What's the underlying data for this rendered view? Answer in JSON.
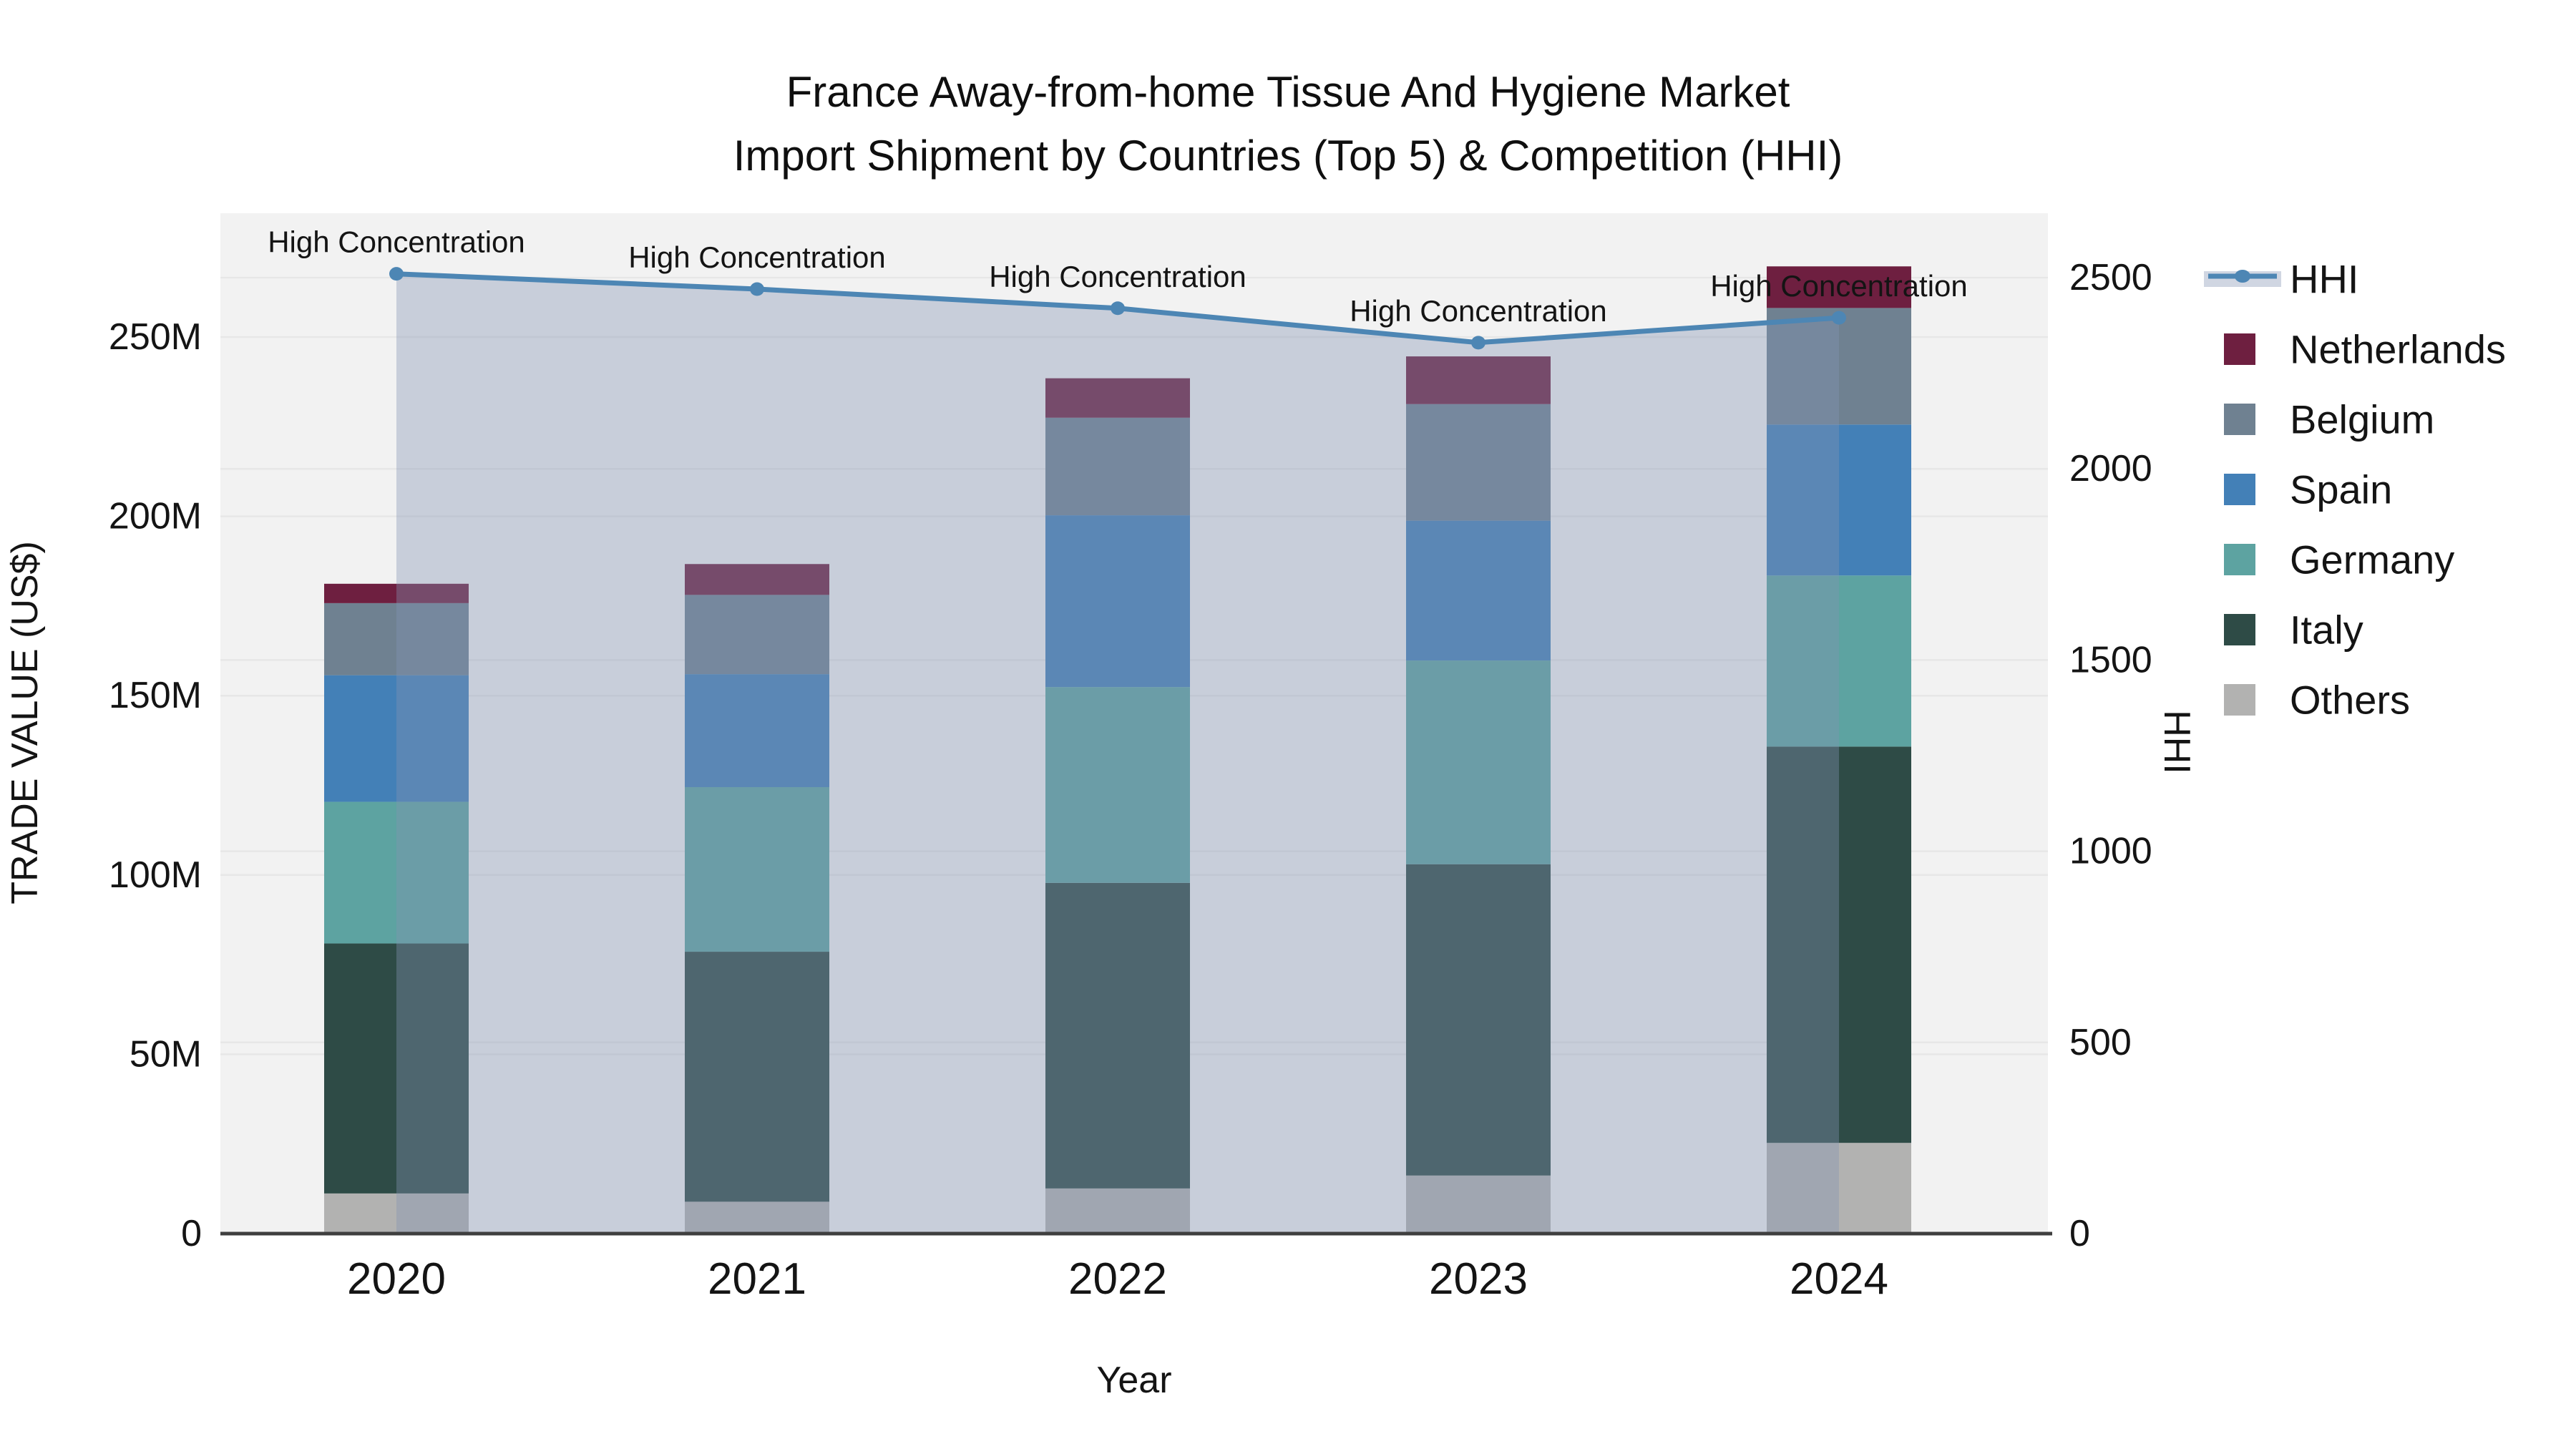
{
  "title": {
    "line1": "France Away-from-home Tissue And Hygiene Market",
    "line2": "Import Shipment by Countries (Top 5) & Competition (HHI)"
  },
  "axes": {
    "left": {
      "label": "TRADE VALUE (US$)",
      "tick_labels": [
        "0",
        "50M",
        "100M",
        "150M",
        "200M",
        "250M"
      ],
      "tick_values": [
        0,
        50,
        100,
        150,
        200,
        250
      ],
      "max_value": 250,
      "unit": "M US$"
    },
    "right": {
      "label": "HHI",
      "tick_labels": [
        "0",
        "500",
        "1000",
        "1500",
        "2000",
        "2500"
      ],
      "tick_values": [
        0,
        500,
        1000,
        1500,
        2000,
        2500
      ],
      "max_value": 2500
    },
    "x": {
      "label": "Year",
      "categories": [
        "2020",
        "2021",
        "2022",
        "2023",
        "2024"
      ]
    }
  },
  "legend": {
    "items": [
      {
        "label": "HHI",
        "type": "line",
        "color": "#4d86b4"
      },
      {
        "label": "Netherlands",
        "type": "patch",
        "color": "#6e1f40"
      },
      {
        "label": "Belgium",
        "type": "patch",
        "color": "#6f8191"
      },
      {
        "label": "Spain",
        "type": "patch",
        "color": "#4380b7"
      },
      {
        "label": "Germany",
        "type": "patch",
        "color": "#5da3a1"
      },
      {
        "label": "Italy",
        "type": "patch",
        "color": "#2e4b46"
      },
      {
        "label": "Others",
        "type": "patch",
        "color": "#b2b2b1"
      }
    ]
  },
  "colors": {
    "background": "#ffffff",
    "plot_background": "#f2f2f2",
    "gridline": "#e7e7e7",
    "axis_line": "#3f3f3f",
    "hhi_line": "#4d86b4",
    "hhi_area_fill": "#8394b2",
    "hhi_area_opacity": 0.38,
    "legend_band": "#d0d6e2",
    "text": "#141414"
  },
  "chart_data": {
    "type": "combo-stacked-bar-and-line",
    "title": "France Away-from-home Tissue And Hygiene Market Import Shipment by Countries (Top 5) & Competition (HHI)",
    "xlabel": "Year",
    "ylabel_left": "TRADE VALUE (US$)",
    "ylabel_right": "HHI",
    "ylim_left_millions": [
      0,
      250
    ],
    "ylim_right": [
      0,
      2500
    ],
    "grid": true,
    "legend_position": "right",
    "categories": [
      "2020",
      "2021",
      "2022",
      "2023",
      "2024"
    ],
    "stack_order_bottom_to_top": [
      "Others",
      "Italy",
      "Germany",
      "Spain",
      "Belgium",
      "Netherlands"
    ],
    "series": [
      {
        "name": "Others",
        "color": "#b2b2b1",
        "values_millions": [
          11.2,
          8.9,
          12.6,
          16.2,
          25.3
        ]
      },
      {
        "name": "Italy",
        "color": "#2e4b46",
        "values_millions": [
          69.7,
          69.7,
          85.2,
          86.8,
          110.5
        ]
      },
      {
        "name": "Germany",
        "color": "#5da3a1",
        "values_millions": [
          39.5,
          45.9,
          54.6,
          56.8,
          47.7
        ]
      },
      {
        "name": "Spain",
        "color": "#4380b7",
        "values_millions": [
          35.3,
          31.5,
          47.9,
          39.0,
          42.1
        ]
      },
      {
        "name": "Belgium",
        "color": "#6f8191",
        "values_millions": [
          20.1,
          22.1,
          27.2,
          32.5,
          32.5
        ]
      },
      {
        "name": "Netherlands",
        "color": "#6e1f40",
        "values_millions": [
          5.4,
          8.6,
          11.0,
          13.3,
          11.6
        ]
      }
    ],
    "bar_totals_millions": [
      181.2,
      186.7,
      238.5,
      244.6,
      269.7
    ],
    "line": {
      "name": "HHI",
      "color": "#4d86b4",
      "values": [
        2510,
        2470,
        2420,
        2330,
        2395
      ],
      "area_under_line": true
    },
    "annotations": [
      {
        "category": "2020",
        "text": "High Concentration"
      },
      {
        "category": "2021",
        "text": "High Concentration"
      },
      {
        "category": "2022",
        "text": "High Concentration"
      },
      {
        "category": "2023",
        "text": "High Concentration"
      },
      {
        "category": "2024",
        "text": "High Concentration"
      }
    ]
  }
}
